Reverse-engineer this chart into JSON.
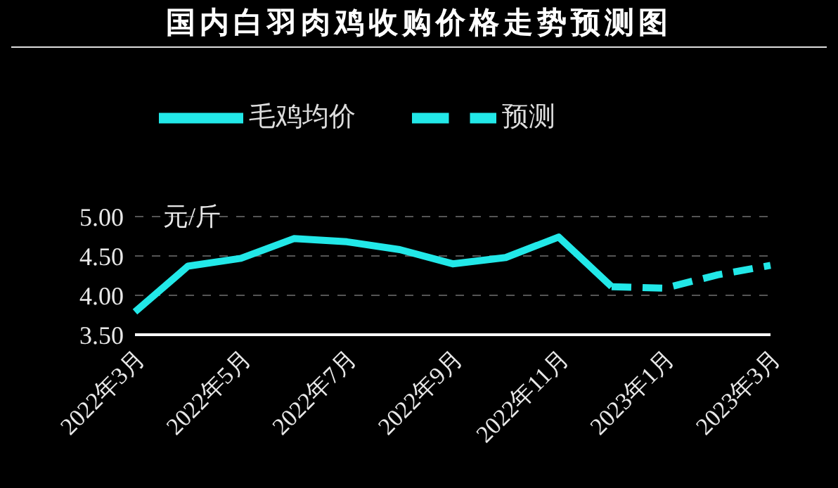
{
  "chart_data": {
    "type": "line",
    "title": "国内白羽肉鸡收购价格走势预测图",
    "ylabel": "元/斤",
    "categories": [
      "2022年3月",
      null,
      "2022年5月",
      null,
      "2022年7月",
      null,
      "2022年9月",
      null,
      "2022年11月",
      null,
      "2023年1月",
      null,
      "2023年3月"
    ],
    "series": [
      {
        "name": "毛鸡均价",
        "color": "#22e8e8",
        "line_style": "solid",
        "values": [
          3.79,
          4.37,
          4.47,
          4.72,
          4.68,
          4.58,
          4.4,
          4.48,
          4.74,
          4.11,
          null,
          null,
          null
        ]
      },
      {
        "name": "预测",
        "color": "#22e8e8",
        "line_style": "dashed",
        "values": [
          null,
          null,
          null,
          null,
          null,
          null,
          null,
          null,
          null,
          4.11,
          4.09,
          4.26,
          4.38
        ]
      }
    ],
    "ylim": [
      3.5,
      5.0
    ],
    "yticks": [
      {
        "value": 3.5,
        "label": "3.50"
      },
      {
        "value": 4.0,
        "label": "4.00"
      },
      {
        "value": 4.5,
        "label": "4.50"
      },
      {
        "value": 5.0,
        "label": "5.00"
      }
    ],
    "grid": "y",
    "legend": "top",
    "marker": "none"
  }
}
